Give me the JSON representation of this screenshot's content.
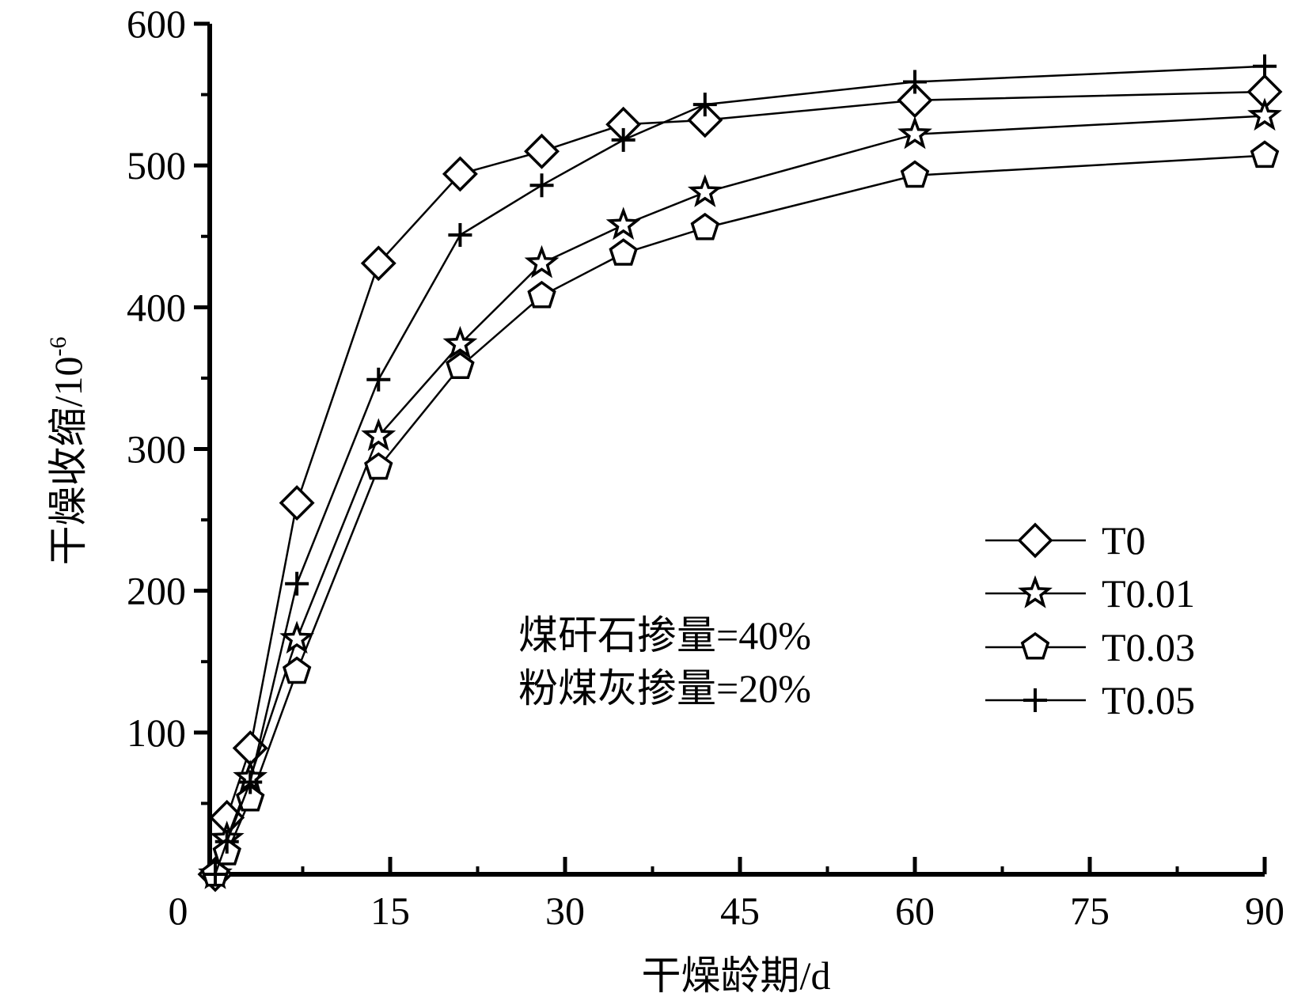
{
  "chart_data": {
    "type": "line",
    "title": "",
    "xlabel": "干燥龄期/d",
    "ylabel": "干燥收缩/10",
    "ylabel_sup": "-6",
    "xlim": [
      0,
      90
    ],
    "ylim": [
      0,
      600
    ],
    "x_ticks": [
      0,
      15,
      30,
      45,
      60,
      75,
      90
    ],
    "y_ticks": [
      100,
      200,
      300,
      400,
      500,
      600
    ],
    "x_minor_step": 7.5,
    "y_minor_step": 50,
    "grid": false,
    "legend_position": "right",
    "annotations": [
      "煤矸石掺量=40%",
      "粉煤灰掺量=20%"
    ],
    "x": [
      0,
      1,
      3,
      7,
      14,
      21,
      28,
      35,
      42,
      60,
      90
    ],
    "series": [
      {
        "name": "T0",
        "marker": "diamond",
        "values": [
          0,
          40,
          89,
          262,
          431,
          494,
          510,
          529,
          532,
          546,
          552
        ]
      },
      {
        "name": "T0.01",
        "marker": "star",
        "values": [
          0,
          25,
          68,
          166,
          309,
          374,
          431,
          458,
          481,
          522,
          535
        ]
      },
      {
        "name": "T0.03",
        "marker": "pentagon",
        "values": [
          0,
          15,
          53,
          143,
          287,
          358,
          408,
          438,
          456,
          493,
          507
        ]
      },
      {
        "name": "T0.05",
        "marker": "plus",
        "values": [
          0,
          23,
          65,
          205,
          349,
          451,
          486,
          518,
          543,
          559,
          570
        ]
      }
    ]
  }
}
